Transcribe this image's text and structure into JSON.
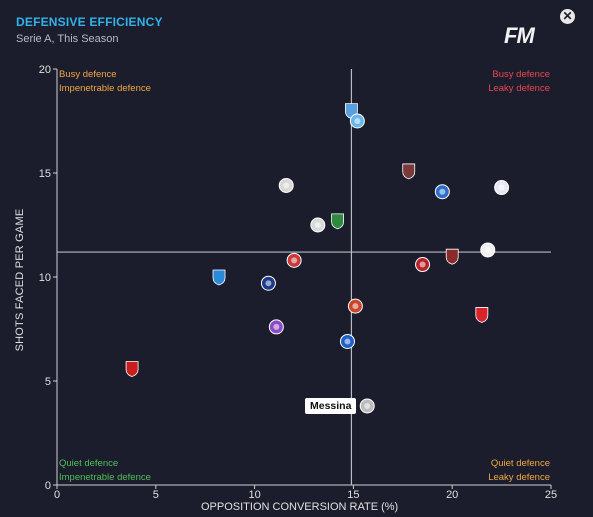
{
  "header": {
    "title": "DEFENSIVE EFFICIENCY",
    "subtitle": "Serie A, This Season",
    "logo_text": "FM",
    "close_symbol": "✕"
  },
  "quadrants": {
    "top_left": [
      "Busy defence",
      "Impenetrable defence"
    ],
    "top_right": [
      "Busy defence",
      "Leaky defence"
    ],
    "bottom_left": [
      "Quiet defence",
      "Impenetrable defence"
    ],
    "bottom_right": [
      "Quiet defence",
      "Leaky defence"
    ]
  },
  "tooltip": {
    "label": "Messina"
  },
  "chart_data": {
    "type": "scatter",
    "xlabel": "OPPOSITION CONVERSION RATE (%)",
    "ylabel": "SHOTS FACED PER GAME",
    "xlim": [
      0,
      25
    ],
    "ylim": [
      0,
      20
    ],
    "xticks": [
      0,
      5,
      10,
      15,
      20,
      25
    ],
    "yticks": [
      0,
      5,
      10,
      15,
      20
    ],
    "reference_lines": {
      "x": 14.9,
      "y": 11.2
    },
    "grid": false,
    "points": [
      {
        "x": 14.9,
        "y": 18.0,
        "color": "#5aa0e0",
        "icon": "crest-blue-white"
      },
      {
        "x": 15.2,
        "y": 17.5,
        "color": "#69b6ea",
        "icon": "crest-light-blue"
      },
      {
        "x": 11.6,
        "y": 14.4,
        "color": "#d9d9d9",
        "icon": "crest-black-white"
      },
      {
        "x": 17.8,
        "y": 15.1,
        "color": "#7a3a3a",
        "icon": "crest-maroon"
      },
      {
        "x": 19.5,
        "y": 14.1,
        "color": "#2d6ec9",
        "icon": "crest-blue"
      },
      {
        "x": 22.5,
        "y": 14.3,
        "color": "#e8e8f5",
        "icon": "crest-white-blue"
      },
      {
        "x": 14.2,
        "y": 12.7,
        "color": "#2e8b3e",
        "icon": "crest-green-black"
      },
      {
        "x": 13.2,
        "y": 12.5,
        "color": "#d9d9d9",
        "icon": "crest-eagle"
      },
      {
        "x": 21.8,
        "y": 11.3,
        "color": "#f0f0f0",
        "icon": "crest-black-white-stripes"
      },
      {
        "x": 20.0,
        "y": 11.0,
        "color": "#8a2a2a",
        "icon": "crest-bull"
      },
      {
        "x": 18.5,
        "y": 10.6,
        "color": "#b8232a",
        "icon": "crest-red-blue"
      },
      {
        "x": 12.0,
        "y": 10.8,
        "color": "#c83a3a",
        "icon": "crest-red-blue-stripes"
      },
      {
        "x": 8.2,
        "y": 10.0,
        "color": "#2a8ad8",
        "icon": "crest-light-blue-n"
      },
      {
        "x": 10.7,
        "y": 9.7,
        "color": "#1f3a8a",
        "icon": "crest-navy"
      },
      {
        "x": 15.1,
        "y": 8.6,
        "color": "#c9462a",
        "icon": "crest-wolf"
      },
      {
        "x": 21.5,
        "y": 8.2,
        "color": "#d8232a",
        "icon": "crest-red-cross"
      },
      {
        "x": 11.1,
        "y": 7.6,
        "color": "#8c4ac7",
        "icon": "crest-fleur"
      },
      {
        "x": 14.7,
        "y": 6.9,
        "color": "#1f5fc9",
        "icon": "crest-inter"
      },
      {
        "x": 3.8,
        "y": 5.6,
        "color": "#c81e1e",
        "icon": "crest-red-black"
      },
      {
        "x": 15.7,
        "y": 3.8,
        "color": "#bcbcbc",
        "icon": "crest-grey",
        "label": "Messina"
      }
    ]
  }
}
